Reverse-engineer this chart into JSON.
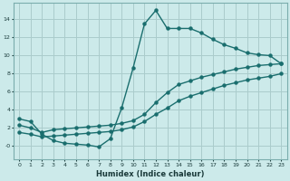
{
  "xlabel": "Humidex (Indice chaleur)",
  "background_color": "#cceaea",
  "grid_color": "#aacccc",
  "line_color": "#1a6e6e",
  "xlim": [
    -0.5,
    23.5
  ],
  "ylim": [
    -1.5,
    15.8
  ],
  "xticks": [
    0,
    1,
    2,
    3,
    4,
    5,
    6,
    7,
    8,
    9,
    10,
    11,
    12,
    13,
    14,
    15,
    16,
    17,
    18,
    19,
    20,
    21,
    22,
    23
  ],
  "yticks": [
    0,
    2,
    4,
    6,
    8,
    10,
    12,
    14
  ],
  "ytick_labels": [
    "-0",
    "2",
    "4",
    "6",
    "8",
    "10",
    "12",
    "14"
  ],
  "line1_x": [
    0,
    1,
    2,
    3,
    4,
    5,
    6,
    7,
    8,
    9,
    10,
    11,
    12,
    13,
    14,
    15,
    16,
    17,
    18,
    19,
    20,
    21,
    22,
    23
  ],
  "line1_y": [
    3.0,
    2.7,
    1.3,
    0.6,
    0.3,
    0.2,
    0.1,
    -0.1,
    0.8,
    4.2,
    8.6,
    13.5,
    15.0,
    13.0,
    13.0,
    13.0,
    12.5,
    11.8,
    11.2,
    10.8,
    10.3,
    10.1,
    10.0,
    9.1
  ],
  "line2_x": [
    0,
    1,
    2,
    3,
    4,
    5,
    6,
    7,
    8,
    9,
    10,
    11,
    12,
    13,
    14,
    15,
    16,
    17,
    18,
    19,
    20,
    21,
    22,
    23
  ],
  "line2_y": [
    2.3,
    2.0,
    1.5,
    1.8,
    1.9,
    2.0,
    2.1,
    2.2,
    2.3,
    2.5,
    2.8,
    3.5,
    4.8,
    5.9,
    6.8,
    7.2,
    7.6,
    7.9,
    8.2,
    8.5,
    8.7,
    8.9,
    9.0,
    9.1
  ],
  "line3_x": [
    0,
    1,
    2,
    3,
    4,
    5,
    6,
    7,
    8,
    9,
    10,
    11,
    12,
    13,
    14,
    15,
    16,
    17,
    18,
    19,
    20,
    21,
    22,
    23
  ],
  "line3_y": [
    1.5,
    1.3,
    1.0,
    1.1,
    1.2,
    1.3,
    1.4,
    1.5,
    1.6,
    1.8,
    2.1,
    2.7,
    3.5,
    4.2,
    5.0,
    5.5,
    5.9,
    6.3,
    6.7,
    7.0,
    7.3,
    7.5,
    7.7,
    8.0
  ],
  "marker_size": 2.2,
  "linewidth": 1.0
}
